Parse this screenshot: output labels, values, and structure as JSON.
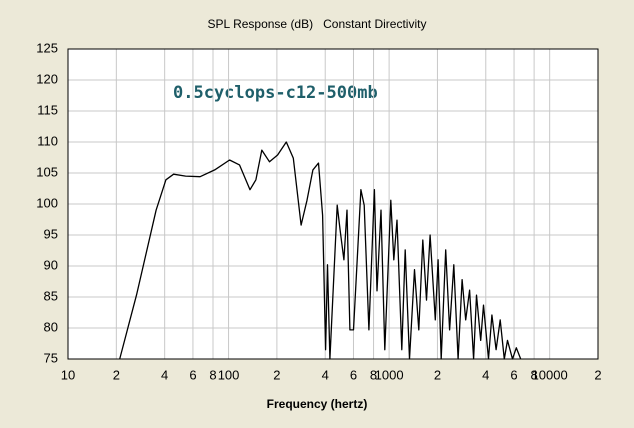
{
  "chart_data": {
    "type": "line",
    "title": "SPL Response (dB)   Constant Directivity",
    "annotation": "0.5cyclops-c12-500mb",
    "x_label": "Frequency (hertz)",
    "log_x": true,
    "grid": true,
    "xlim": [
      10,
      20000
    ],
    "ylim": [
      75,
      125
    ],
    "xticks": [
      10,
      {
        "value": 20,
        "label": "2"
      },
      {
        "value": 40,
        "label": "4"
      },
      {
        "value": 60,
        "label": "6"
      },
      {
        "value": 80,
        "label": "8"
      },
      100,
      {
        "value": 200,
        "label": "2"
      },
      {
        "value": 400,
        "label": "4"
      },
      {
        "value": 600,
        "label": "6"
      },
      {
        "value": 800,
        "label": "8"
      },
      1000,
      {
        "value": 2000,
        "label": "2"
      },
      {
        "value": 4000,
        "label": "4"
      },
      {
        "value": 6000,
        "label": "6"
      },
      {
        "value": 8000,
        "label": "8"
      },
      10000,
      {
        "value": 20000,
        "label": "2"
      }
    ],
    "yticks": [
      75,
      80,
      85,
      90,
      95,
      100,
      105,
      110,
      115,
      120,
      125
    ],
    "series": [
      {
        "color": "#000000",
        "x": [
          21,
          26.7,
          35.4,
          40.7,
          45.5,
          54,
          66.5,
          82,
          101.5,
          117,
          136,
          148,
          161,
          180,
          202,
          229,
          253,
          283,
          308,
          335,
          363,
          385,
          402,
          413,
          428,
          475,
          495,
          523,
          547,
          570,
          600,
          667,
          700,
          748,
          810,
          840,
          890,
          940,
          1025,
          1070,
          1120,
          1200,
          1260,
          1340,
          1440,
          1530,
          1620,
          1710,
          1800,
          1940,
          2020,
          2110,
          2250,
          2380,
          2530,
          2690,
          2850,
          3000,
          3170,
          3360,
          3500,
          3720,
          3870,
          4160,
          4370,
          4640,
          4920,
          5220,
          5460,
          5870,
          6200,
          6600
        ],
        "values": [
          75,
          85.3,
          99,
          103.9,
          104.8,
          104.5,
          104.4,
          105.5,
          107.1,
          106.3,
          102.3,
          103.9,
          108.7,
          106.8,
          107.9,
          110,
          107.4,
          96.6,
          100.6,
          105.5,
          106.6,
          98.2,
          76.5,
          90.2,
          75,
          99.8,
          95.8,
          91,
          99,
          79.7,
          79.7,
          102.3,
          99.8,
          79.7,
          102.3,
          86,
          99,
          76.5,
          100.6,
          91,
          97.4,
          76.5,
          92.6,
          75,
          89.4,
          79.7,
          94.2,
          84.5,
          95,
          81.3,
          91,
          75,
          92.6,
          79.7,
          90.2,
          75,
          87.8,
          81.3,
          86.1,
          75,
          85.3,
          78,
          83.7,
          75,
          82.1,
          76.5,
          81.3,
          75,
          78,
          75,
          76.8,
          75
        ]
      }
    ]
  }
}
